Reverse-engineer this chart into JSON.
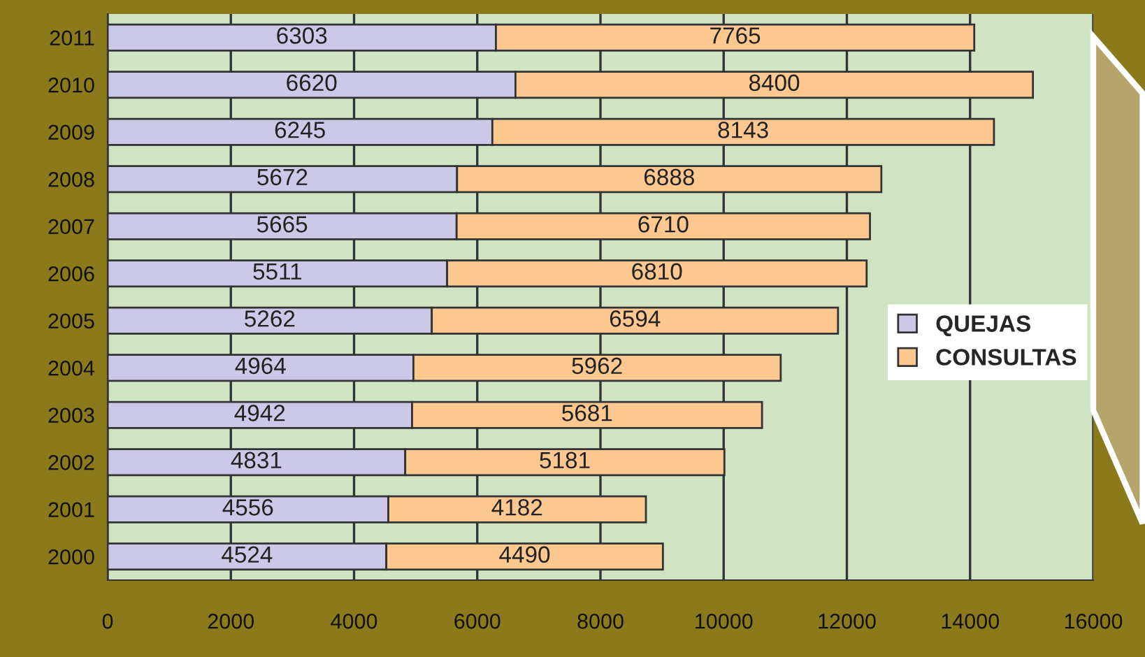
{
  "chart_data": {
    "type": "bar",
    "orientation": "horizontal",
    "stacked": true,
    "categories": [
      "2011",
      "2010",
      "2009",
      "2008",
      "2007",
      "2006",
      "2005",
      "2004",
      "2003",
      "2002",
      "2001",
      "2000"
    ],
    "series": [
      {
        "name": "QUEJAS",
        "color": "#ccc8e8",
        "values": [
          6303,
          6620,
          6245,
          5672,
          5665,
          5511,
          5262,
          4964,
          4942,
          4831,
          4556,
          4524
        ]
      },
      {
        "name": "CONSULTAS",
        "color": "#fcc890",
        "values": [
          7765,
          8400,
          8143,
          6888,
          6710,
          6810,
          6594,
          5962,
          5681,
          5181,
          4182,
          4490
        ]
      }
    ],
    "xlim": [
      0,
      16000
    ],
    "xticks": [
      0,
      2000,
      4000,
      6000,
      8000,
      10000,
      12000,
      14000,
      16000
    ],
    "grid": "x",
    "legend": "right",
    "data_labels": true
  }
}
